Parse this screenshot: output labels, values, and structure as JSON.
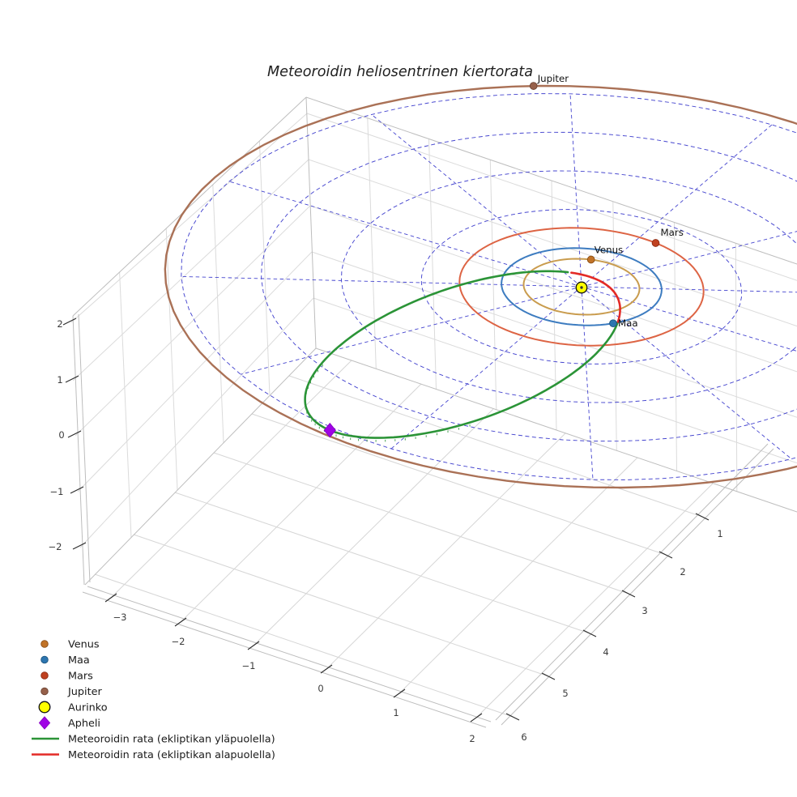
{
  "chart_data": {
    "type": "line",
    "title": "Meteoroidin heliosentrinen kiertorata",
    "planets": [
      {
        "name": "Venus",
        "orbit_radius_au": 0.723,
        "angle_deg": 109,
        "dot_color": "#c17327",
        "dot_edge": "#8a4d14",
        "orbit_color": "#c99c4e"
      },
      {
        "name": "Maa",
        "orbit_radius_au": 1.0,
        "angle_deg": -38.4,
        "dot_color": "#2d76b0",
        "dot_edge": "#1c547f",
        "orbit_color": "#3d7cc0"
      },
      {
        "name": "Mars",
        "orbit_radius_au": 1.524,
        "angle_deg": 81,
        "dot_color": "#c04120",
        "dot_edge": "#8c2b12",
        "orbit_color": "#dd6444"
      },
      {
        "name": "Jupiter",
        "orbit_radius_au": 5.2,
        "angle_deg": 125,
        "dot_color": "#96604a",
        "dot_edge": "#6b4232",
        "orbit_color": "#aa7156"
      }
    ],
    "sun": {
      "name": "Aurinko",
      "color": "#ffff00",
      "edge_color": "#111111"
    },
    "aphelion": {
      "name": "Apheli",
      "color": "#a002e6",
      "edge_color": "#8a00c8"
    },
    "meteoroid_orbit": {
      "above_ecliptic": {
        "label": "Meteoroidin rata (ekliptikan yläpuolella)",
        "color": "#2b9437"
      },
      "below_ecliptic": {
        "label": "Meteoroidin rata (ekliptikan alapuolella)",
        "color": "#e32a26"
      },
      "ellipse_center_au": [
        -0.284,
        -2.6,
        0.19
      ],
      "ellipse_u_au": [
        -0.316,
        -2.9,
        0.21
      ],
      "ellipse_v_au": [
        -1.282,
        0.14,
        0.059
      ],
      "below_t_deg": [
        166.3,
        222.6
      ]
    },
    "ecliptic_grid": {
      "circle_radii_au": [
        1,
        2,
        3,
        4,
        5
      ],
      "spoke_step_deg": 30,
      "color": "#4545cf"
    },
    "axes": {
      "x_ticks": [
        "−3",
        "−2",
        "−1",
        "0",
        "1",
        "2"
      ],
      "y_ticks": [
        "1",
        "2",
        "3",
        "4",
        "5",
        "6"
      ],
      "z_ticks": [
        "2",
        "1",
        "0",
        "−1",
        "−2"
      ]
    },
    "legend": [
      {
        "label": "Venus",
        "marker": "dot",
        "fill": "#c17327",
        "edge": "#8a4d14"
      },
      {
        "label": "Maa",
        "marker": "dot",
        "fill": "#2d76b0",
        "edge": "#1c547f"
      },
      {
        "label": "Mars",
        "marker": "dot",
        "fill": "#c04120",
        "edge": "#8c2b12"
      },
      {
        "label": "Jupiter",
        "marker": "dot",
        "fill": "#96604a",
        "edge": "#6b4232"
      },
      {
        "label": "Aurinko",
        "marker": "circle",
        "fill": "#ffff00",
        "edge": "#111111"
      },
      {
        "label": "Apheli",
        "marker": "diamond",
        "fill": "#a002e6",
        "edge": "#8a00c8"
      },
      {
        "label": "Meteoroidin rata (ekliptikan yläpuolella)",
        "marker": "line",
        "fill": "#2b9437",
        "edge": "#2b9437"
      },
      {
        "label": "Meteoroidin rata (ekliptikan alapuolella)",
        "marker": "line",
        "fill": "#e32a26",
        "edge": "#e32a26"
      }
    ]
  }
}
